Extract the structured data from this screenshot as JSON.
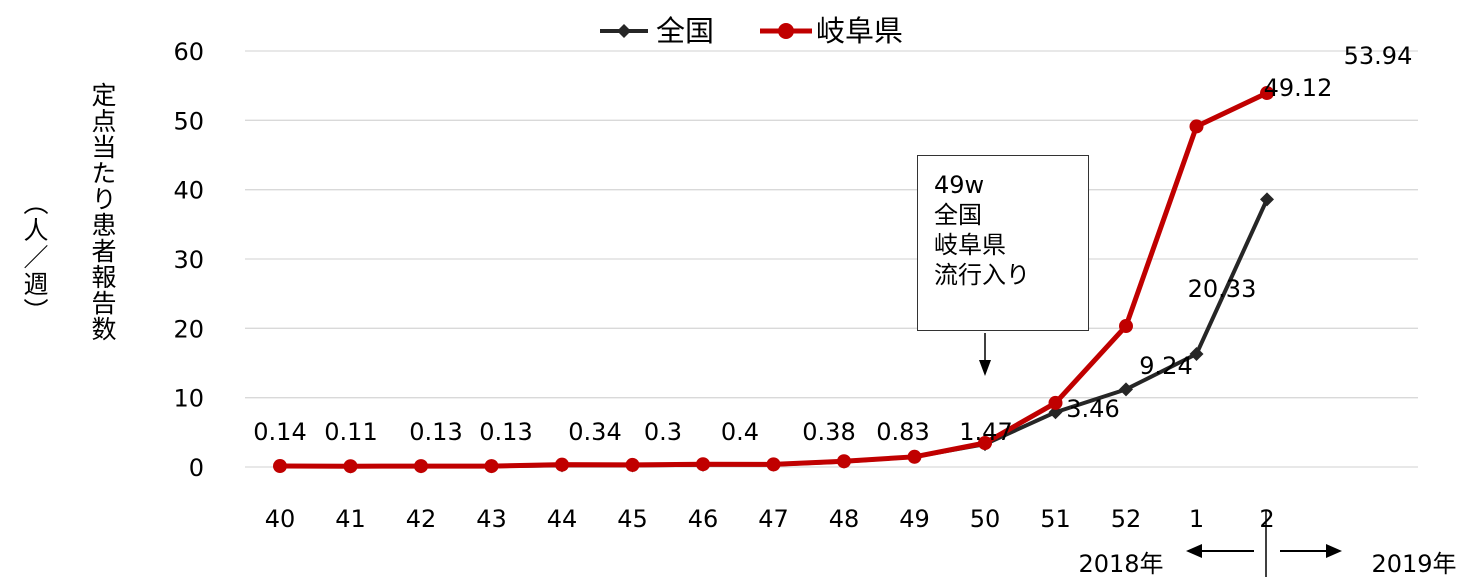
{
  "chart_data": {
    "type": "line",
    "ylabel": "定点当たり患者報告数",
    "yunit": "（人／週）",
    "ylim": [
      0,
      60
    ],
    "yticks": [
      0,
      10,
      20,
      30,
      40,
      50,
      60
    ],
    "grid": true,
    "legend_position": "top-center",
    "categories": [
      "40",
      "41",
      "42",
      "43",
      "44",
      "45",
      "46",
      "47",
      "48",
      "49",
      "50",
      "51",
      "52",
      "1",
      "2"
    ],
    "series": [
      {
        "name": "全国",
        "color": "#262626",
        "marker": "diamond",
        "values": [
          0.12,
          0.09,
          0.11,
          0.12,
          0.24,
          0.24,
          0.33,
          0.35,
          0.77,
          1.47,
          3.3,
          7.9,
          11.2,
          16.3,
          38.6
        ]
      },
      {
        "name": "岐阜県",
        "color": "#c00000",
        "marker": "circle",
        "values": [
          0.14,
          0.11,
          0.13,
          0.13,
          0.34,
          0.3,
          0.4,
          0.38,
          0.83,
          1.47,
          3.46,
          9.24,
          20.33,
          49.12,
          53.94
        ],
        "data_labels": [
          "0.14",
          "0.11",
          "0.13",
          "0.13",
          "0.34",
          "0.3",
          "0.4",
          "0.38",
          "0.83",
          "1.47",
          "3.46",
          "9.24",
          "20.33",
          "49.12",
          "53.94"
        ]
      }
    ],
    "annotation": {
      "lines": [
        "49w",
        "全国",
        "岐阜県",
        "流行入り"
      ],
      "target_category": "49"
    },
    "year_labels": {
      "left": "2018年",
      "right": "2019年"
    }
  }
}
